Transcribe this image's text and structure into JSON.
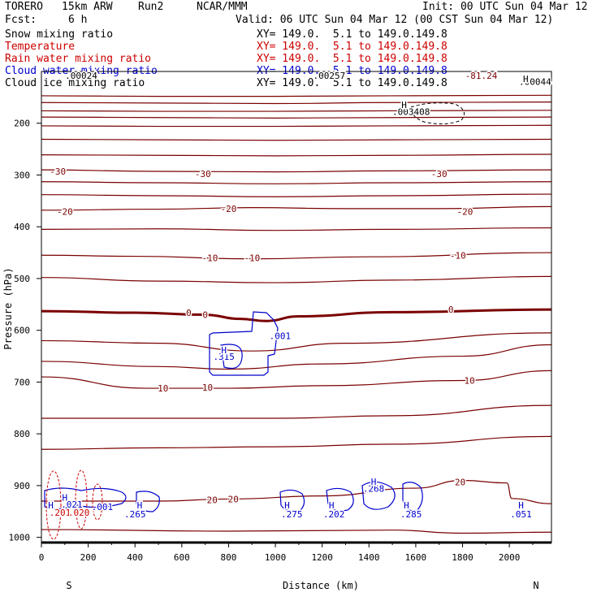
{
  "header": {
    "model": "TORERO",
    "resolution": "15km ARW",
    "run": "Run2",
    "org": "NCAR/MMM",
    "init": "Init: 00 UTC Sun 04 Mar 12",
    "fcst_label": "Fcst:",
    "fcst_value": "6 h",
    "valid": "Valid: 06 UTC Sun 04 Mar 12 (00 CST Sun 04 Mar 12)"
  },
  "fields": [
    {
      "name": "Snow mixing ratio",
      "xy": "XY= 149.0.  5.1 to 149.0.149.8",
      "color": "#000000"
    },
    {
      "name": "Temperature",
      "xy": "XY= 149.0.  5.1 to 149.0.149.8",
      "color": "#cc0000"
    },
    {
      "name": "Rain water mixing ratio",
      "xy": "XY= 149.0.  5.1 to 149.0.149.8",
      "color": "#cc0000"
    },
    {
      "name": "Cloud water mixing ratio",
      "xy": "XY= 149.0.  5.1 to 149.0.149.8",
      "color": "#0000cc"
    },
    {
      "name": "Cloud ice mixing ratio",
      "xy": "XY= 149.0.  5.1 to 149.0.149.8",
      "color": "#000000"
    }
  ],
  "colors": {
    "temperature": "#7a0000",
    "temperature_zero": "#7a0000",
    "cloud_water": "#0000cc",
    "rain": "#cc0000",
    "ice": "#000000",
    "axis": "#000000"
  },
  "chart_data": {
    "type": "line",
    "subtype": "vertical cross-section contour",
    "xlabel": "Distance (km)",
    "ylabel": "Pressure (hPa)",
    "xlim": [
      0,
      2180
    ],
    "ylim": [
      1010,
      100
    ],
    "x_ticks": [
      0,
      200,
      400,
      600,
      800,
      1000,
      1200,
      1400,
      1600,
      1800,
      2000
    ],
    "y_ticks": [
      200,
      300,
      400,
      500,
      600,
      700,
      800,
      900,
      1000
    ],
    "end_labels": {
      "left": "S",
      "right": "N"
    },
    "temperature_isotherms": [
      {
        "p": [
          [
            0,
            147
          ],
          [
            500,
            148
          ],
          [
            1000,
            148
          ],
          [
            1500,
            147
          ],
          [
            2180,
            146
          ]
        ]
      },
      {
        "p": [
          [
            0,
            160
          ],
          [
            500,
            161
          ],
          [
            1000,
            162
          ],
          [
            1500,
            160
          ],
          [
            2180,
            159
          ]
        ]
      },
      {
        "p": [
          [
            0,
            176
          ],
          [
            500,
            177
          ],
          [
            1000,
            177
          ],
          [
            1500,
            176
          ],
          [
            2180,
            175
          ]
        ]
      },
      {
        "p": [
          [
            0,
            188
          ],
          [
            500,
            189
          ],
          [
            1000,
            190
          ],
          [
            1500,
            189
          ],
          [
            2180,
            188
          ]
        ]
      },
      {
        "p": [
          [
            0,
            205
          ],
          [
            500,
            206
          ],
          [
            1000,
            206
          ],
          [
            1500,
            205
          ],
          [
            2180,
            204
          ]
        ]
      },
      {
        "p": [
          [
            0,
            231
          ],
          [
            500,
            232
          ],
          [
            1000,
            233
          ],
          [
            1500,
            232
          ],
          [
            2180,
            231
          ]
        ]
      },
      {
        "p": [
          [
            0,
            261
          ],
          [
            500,
            262
          ],
          [
            1000,
            263
          ],
          [
            1500,
            262
          ],
          [
            2180,
            260
          ]
        ]
      },
      {
        "value": -30,
        "p": [
          [
            0,
            290
          ],
          [
            500,
            293
          ],
          [
            1000,
            294
          ],
          [
            1500,
            292
          ],
          [
            2180,
            290
          ]
        ]
      },
      {
        "p": [
          [
            0,
            313
          ],
          [
            500,
            315
          ],
          [
            1000,
            317
          ],
          [
            1500,
            315
          ],
          [
            2180,
            313
          ]
        ]
      },
      {
        "p": [
          [
            0,
            338
          ],
          [
            500,
            340
          ],
          [
            1000,
            342
          ],
          [
            1500,
            340
          ],
          [
            2180,
            337
          ]
        ]
      },
      {
        "value": -20,
        "p": [
          [
            0,
            368
          ],
          [
            500,
            366
          ],
          [
            900,
            363
          ],
          [
            1300,
            365
          ],
          [
            1700,
            365
          ],
          [
            2180,
            361
          ]
        ]
      },
      {
        "p": [
          [
            0,
            405
          ],
          [
            500,
            404
          ],
          [
            1000,
            407
          ],
          [
            1500,
            405
          ],
          [
            2180,
            402
          ]
        ]
      },
      {
        "value": -10,
        "p": [
          [
            0,
            455
          ],
          [
            400,
            457
          ],
          [
            900,
            462
          ],
          [
            1400,
            458
          ],
          [
            2180,
            450
          ]
        ]
      },
      {
        "p": [
          [
            0,
            498
          ],
          [
            500,
            505
          ],
          [
            1000,
            508
          ],
          [
            1500,
            503
          ],
          [
            2180,
            496
          ]
        ]
      },
      {
        "value": 0,
        "bold": true,
        "p": [
          [
            0,
            563
          ],
          [
            400,
            566
          ],
          [
            700,
            570
          ],
          [
            850,
            578
          ],
          [
            960,
            582
          ],
          [
            1100,
            573
          ],
          [
            1500,
            565
          ],
          [
            2180,
            560
          ]
        ]
      },
      {
        "p": [
          [
            0,
            620
          ],
          [
            500,
            625
          ],
          [
            900,
            640
          ],
          [
            1300,
            625
          ],
          [
            2180,
            605
          ]
        ]
      },
      {
        "p": [
          [
            0,
            660
          ],
          [
            500,
            670
          ],
          [
            800,
            675
          ],
          [
            1200,
            665
          ],
          [
            1800,
            650
          ],
          [
            2180,
            628
          ]
        ]
      },
      {
        "value": 10,
        "p": [
          [
            0,
            690
          ],
          [
            450,
            712
          ],
          [
            800,
            712
          ],
          [
            1200,
            707
          ],
          [
            1800,
            697
          ],
          [
            2180,
            678
          ]
        ]
      },
      {
        "p": [
          [
            0,
            770
          ],
          [
            500,
            770
          ],
          [
            1000,
            770
          ],
          [
            1500,
            765
          ],
          [
            2180,
            745
          ]
        ]
      },
      {
        "p": [
          [
            0,
            830
          ],
          [
            500,
            827
          ],
          [
            1000,
            825
          ],
          [
            1500,
            820
          ],
          [
            2180,
            805
          ]
        ]
      },
      {
        "value": 20,
        "p": [
          [
            0,
            930
          ],
          [
            500,
            930
          ],
          [
            800,
            926
          ],
          [
            1200,
            920
          ],
          [
            1600,
            905
          ],
          [
            1800,
            890
          ],
          [
            1990,
            895
          ],
          [
            2010,
            925
          ],
          [
            2180,
            935
          ]
        ]
      },
      {
        "p": [
          [
            0,
            985
          ],
          [
            800,
            988
          ],
          [
            1500,
            986
          ],
          [
            1800,
            992
          ],
          [
            2180,
            990
          ]
        ]
      }
    ],
    "temperature_labels": [
      {
        "x": 70,
        "p": 293,
        "t": "-30"
      },
      {
        "x": 690,
        "p": 298,
        "t": "-30"
      },
      {
        "x": 1700,
        "p": 298,
        "t": "-30"
      },
      {
        "x": 100,
        "p": 371,
        "t": "-20"
      },
      {
        "x": 800,
        "p": 365,
        "t": "-20"
      },
      {
        "x": 1810,
        "p": 371,
        "t": "-20"
      },
      {
        "x": 720,
        "p": 460,
        "t": "-10"
      },
      {
        "x": 900,
        "p": 460,
        "t": "-10"
      },
      {
        "x": 1780,
        "p": 455,
        "t": "-10"
      },
      {
        "x": 630,
        "p": 566,
        "t": "0"
      },
      {
        "x": 700,
        "p": 570,
        "t": "0"
      },
      {
        "x": 1750,
        "p": 560,
        "t": "0"
      },
      {
        "x": 520,
        "p": 712,
        "t": "10"
      },
      {
        "x": 710,
        "p": 710,
        "t": "10"
      },
      {
        "x": 1830,
        "p": 697,
        "t": "10"
      },
      {
        "x": 730,
        "p": 928,
        "t": "20"
      },
      {
        "x": 820,
        "p": 926,
        "t": "20"
      },
      {
        "x": 1790,
        "p": 893,
        "t": "20"
      }
    ],
    "top_labels": [
      {
        "x": 170,
        "p": 108,
        "t": ".00024",
        "color": "#000000"
      },
      {
        "x": 1230,
        "p": 108,
        "t": ".00257",
        "color": "#000000"
      },
      {
        "x": 1880,
        "p": 108,
        "t": "-81.24",
        "color": "#7a0000"
      },
      {
        "x": 2110,
        "p": 120,
        "t": ".00044",
        "color": "#000000"
      },
      {
        "x": 1580,
        "p": 178,
        "t": ".003408",
        "color": "#000000"
      }
    ],
    "cloud_water_labels": [
      {
        "x": 1020,
        "p": 611,
        "t": ".001"
      },
      {
        "x": 780,
        "p": 651,
        "t": ".315"
      },
      {
        "x": 400,
        "p": 955,
        "t": ".265"
      },
      {
        "x": 1070,
        "p": 955,
        "t": ".275"
      },
      {
        "x": 1250,
        "p": 955,
        "t": ".202"
      },
      {
        "x": 1420,
        "p": 906,
        "t": ".268"
      },
      {
        "x": 1580,
        "p": 955,
        "t": ".285"
      },
      {
        "x": 2050,
        "p": 955,
        "t": ".051"
      },
      {
        "x": 260,
        "p": 941,
        "t": ".001"
      },
      {
        "x": 130,
        "p": 936,
        "t": ".021"
      }
    ],
    "rain_labels": [
      {
        "x": 80,
        "p": 952,
        "t": ".201"
      },
      {
        "x": 160,
        "p": 952,
        "t": ".020"
      }
    ],
    "h_markers": [
      {
        "x": 2070,
        "p": 114,
        "color": "#000000"
      },
      {
        "x": 1550,
        "p": 164,
        "color": "#000000"
      },
      {
        "x": 780,
        "p": 638,
        "color": "#0000cc"
      },
      {
        "x": 100,
        "p": 923,
        "color": "#0000cc"
      },
      {
        "x": 40,
        "p": 938,
        "color": "#0000cc"
      },
      {
        "x": 420,
        "p": 938,
        "color": "#0000cc"
      },
      {
        "x": 1050,
        "p": 938,
        "color": "#0000cc"
      },
      {
        "x": 1240,
        "p": 938,
        "color": "#0000cc"
      },
      {
        "x": 1420,
        "p": 892,
        "color": "#0000cc"
      },
      {
        "x": 1560,
        "p": 938,
        "color": "#0000cc"
      },
      {
        "x": 2050,
        "p": 938,
        "color": "#0000cc"
      }
    ]
  }
}
